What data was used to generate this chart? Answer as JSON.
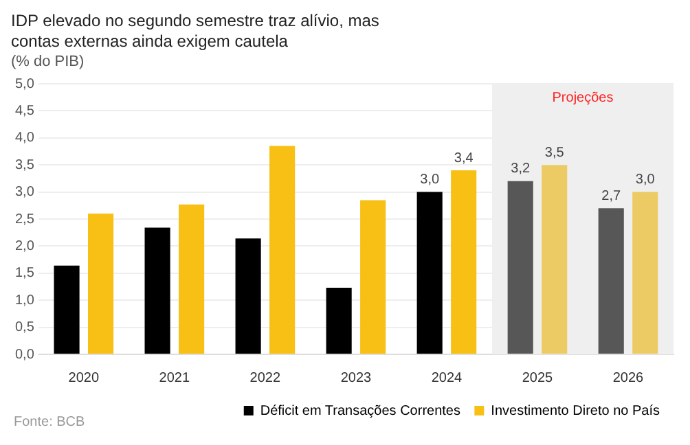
{
  "chart_data": {
    "type": "bar",
    "title": "IDP elevado no segundo semestre traz alívio, mas contas externas ainda exigem cautela",
    "subtitle": "(% do PIB)",
    "categories": [
      "2020",
      "2021",
      "2022",
      "2023",
      "2024",
      "2025",
      "2026"
    ],
    "series": [
      {
        "name": "Déficit em Transações Correntes",
        "color": "#000000",
        "colors": [
          "#000000",
          "#000000",
          "#000000",
          "#000000",
          "#000000",
          "#575757",
          "#575757"
        ],
        "values": [
          1.64,
          2.34,
          2.14,
          1.23,
          3.0,
          3.2,
          2.7
        ],
        "value_labels": [
          null,
          null,
          null,
          null,
          "3,0",
          "3,2",
          "2,7"
        ]
      },
      {
        "name": "Investimento Direto no País",
        "color": "#f8c015",
        "colors": [
          "#f8c015",
          "#f8c015",
          "#f8c015",
          "#f8c015",
          "#f8c015",
          "#eccb65",
          "#eccb65"
        ],
        "values": [
          2.6,
          2.77,
          3.85,
          2.85,
          3.4,
          3.5,
          3.0
        ],
        "value_labels": [
          null,
          null,
          null,
          null,
          "3,4",
          "3,5",
          "3,0"
        ]
      }
    ],
    "ylim": [
      0,
      5
    ],
    "yticks": [
      {
        "value": 0,
        "label": "0,0"
      },
      {
        "value": 0.5,
        "label": "0,5"
      },
      {
        "value": 1,
        "label": "1,0"
      },
      {
        "value": 1.5,
        "label": "1,5"
      },
      {
        "value": 2,
        "label": "2,0"
      },
      {
        "value": 2.5,
        "label": "2,5"
      },
      {
        "value": 3,
        "label": "3,0"
      },
      {
        "value": 3.5,
        "label": "3,5"
      },
      {
        "value": 4,
        "label": "4,0"
      },
      {
        "value": 4.5,
        "label": "4,5"
      },
      {
        "value": 5,
        "label": "5,0"
      }
    ],
    "grid": "y",
    "legend": "bottom right",
    "bands": [
      {
        "axis": "x",
        "from": "2025",
        "to": "2026",
        "label": "Projeções",
        "color": "#efefef"
      }
    ],
    "annotations": [
      "Fonte: BCB"
    ]
  }
}
